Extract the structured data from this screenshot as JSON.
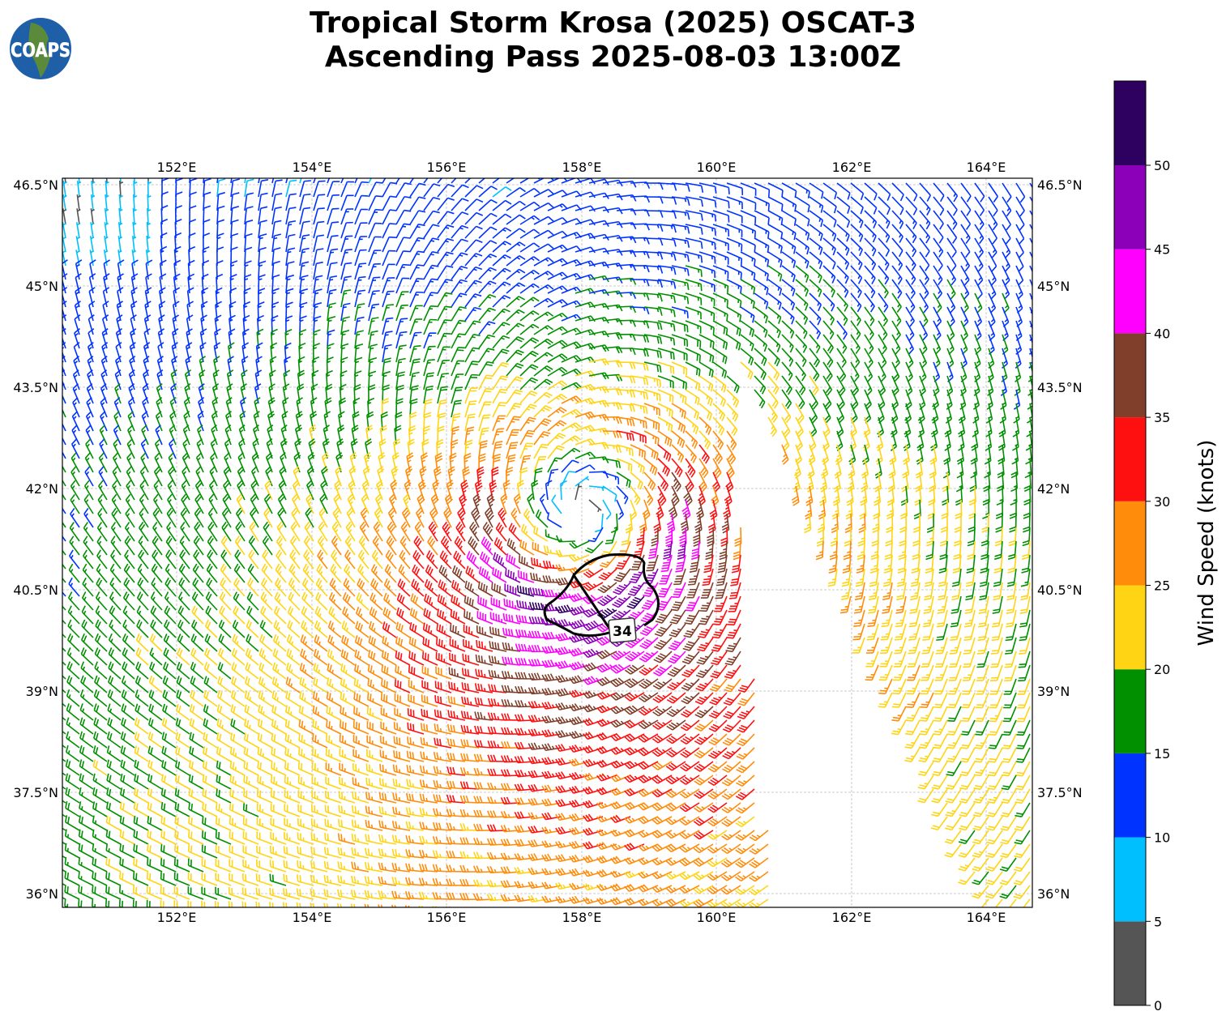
{
  "header": {
    "title_line1": "Tropical Storm Krosa (2025) OSCAT-3",
    "title_line2": "Ascending Pass 2025-08-03 13:00Z",
    "logo_text": "COAPS"
  },
  "map": {
    "lon_ticks": [
      "152°E",
      "154°E",
      "156°E",
      "158°E",
      "160°E",
      "162°E",
      "164°E"
    ],
    "lat_ticks": [
      "46.5°N",
      "45°N",
      "43.5°N",
      "42°N",
      "40.5°N",
      "39°N",
      "37.5°N",
      "36°N"
    ],
    "contour_label": "34",
    "contour_kt": 34
  },
  "colorbar": {
    "label": "Wind Speed (knots)",
    "ticks": [
      "0",
      "5",
      "10",
      "15",
      "20",
      "25",
      "30",
      "35",
      "40",
      "45",
      "50"
    ],
    "bins": [
      0,
      5,
      10,
      15,
      20,
      25,
      30,
      35,
      40,
      45,
      50,
      55
    ],
    "colors": [
      "#555555",
      "#00bfff",
      "#0033ff",
      "#009000",
      "#ffd414",
      "#ff8c0a",
      "#ff1010",
      "#7f3f2a",
      "#ff00ff",
      "#8b00b8",
      "#2e0060"
    ]
  }
}
